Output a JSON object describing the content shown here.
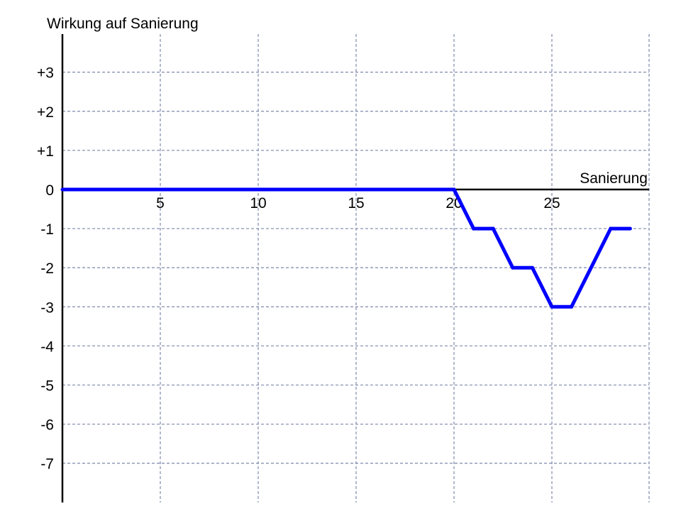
{
  "chart_data": {
    "type": "line",
    "title": "",
    "ylabel": "Wirkung auf Sanierung",
    "xlabel": "Sanierung",
    "xlim": [
      0,
      30
    ],
    "ylim": [
      -8,
      4
    ],
    "x_ticks": [
      5,
      10,
      15,
      20,
      25
    ],
    "x_tick_labels": [
      "5",
      "10",
      "15",
      "20",
      "25"
    ],
    "y_ticks": [
      3,
      2,
      1,
      0,
      -1,
      -2,
      -3,
      -4,
      -5,
      -6,
      -7
    ],
    "y_tick_labels": [
      "+3",
      "+2",
      "+1",
      "0",
      "-1",
      "-2",
      "-3",
      "-4",
      "-5",
      "-6",
      "-7"
    ],
    "grid": true,
    "series": [
      {
        "color": "#0000ff",
        "x": [
          0,
          20,
          21,
          22,
          23,
          24,
          25,
          26,
          27,
          28,
          29
        ],
        "y": [
          0,
          0,
          -1,
          -1,
          -2,
          -2,
          -3,
          -3,
          -2,
          -1,
          -1
        ]
      }
    ]
  }
}
